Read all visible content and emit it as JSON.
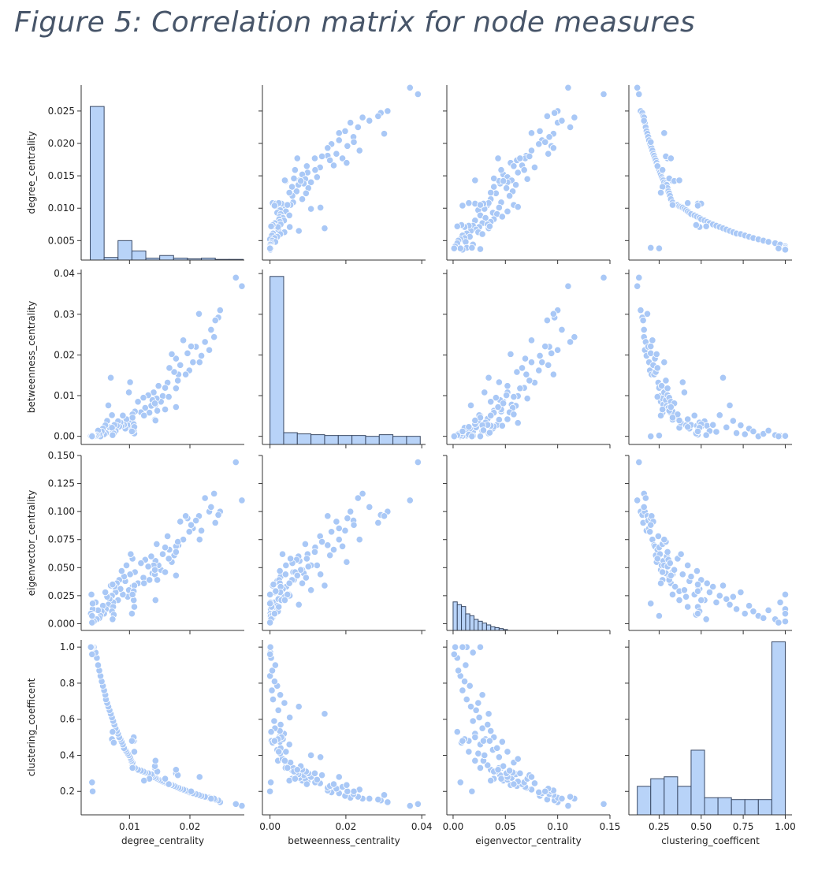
{
  "figure": {
    "title": "Figure 5: Correlation matrix for node measures"
  },
  "colors": {
    "point": "#a9c8f6",
    "point_edge": "#ffffff",
    "bar": "#b8d3f8",
    "bar_edge": "#3a4a66",
    "axis": "#333333"
  },
  "chart_data": {
    "type": "scatter",
    "title": "",
    "variables": [
      "degree_centrality",
      "betweenness_centrality",
      "eigenvector_centrality",
      "clustering_coefficent"
    ],
    "axes": [
      {
        "name": "degree_centrality",
        "range": [
          0.002,
          0.029
        ],
        "ticks": [
          0.005,
          0.01,
          0.015,
          0.02,
          0.025
        ],
        "tick_labels": [
          "0.005",
          "0.010",
          "0.015",
          "0.020",
          "0.025"
        ],
        "x_ticks": [
          0.01,
          0.02
        ],
        "x_tick_labels": [
          "0.01",
          "0.02"
        ]
      },
      {
        "name": "betweenness_centrality",
        "range": [
          -0.002,
          0.041
        ],
        "ticks": [
          0,
          0.01,
          0.02,
          0.03,
          0.04
        ],
        "tick_labels": [
          "0.00",
          "0.01",
          "0.02",
          "0.03",
          "0.04"
        ],
        "x_ticks": [
          0,
          0.02,
          0.04
        ],
        "x_tick_labels": [
          "0.00",
          "0.02",
          "0.04"
        ]
      },
      {
        "name": "eigenvector_centrality",
        "range": [
          -0.006,
          0.15
        ],
        "ticks": [
          0,
          0.025,
          0.05,
          0.075,
          0.1,
          0.125,
          0.15
        ],
        "tick_labels": [
          "0.000",
          "0.025",
          "0.050",
          "0.075",
          "0.100",
          "0.125",
          "0.150"
        ],
        "x_ticks": [
          0,
          0.05,
          0.1,
          0.15
        ],
        "x_tick_labels": [
          "0.00",
          "0.05",
          "0.10",
          "0.15"
        ]
      },
      {
        "name": "clustering_coefficent",
        "range": [
          0.07,
          1.04
        ],
        "ticks": [
          0.2,
          0.4,
          0.6,
          0.8,
          1.0
        ],
        "tick_labels": [
          "0.2",
          "0.4",
          "0.6",
          "0.8",
          "1.0"
        ],
        "x_ticks": [
          0.25,
          0.5,
          0.75,
          1.0
        ],
        "x_tick_labels": [
          "0.25",
          "0.50",
          "0.75",
          "1.00"
        ]
      }
    ],
    "grid": false,
    "legend": "none",
    "histograms": [
      {
        "variable": "degree_centrality",
        "bins": [
          {
            "x0": 0.0035,
            "x1": 0.0058,
            "v": 0.0257
          },
          {
            "x0": 0.0058,
            "x1": 0.0081,
            "v": 0.0024
          },
          {
            "x0": 0.0081,
            "x1": 0.0104,
            "v": 0.005
          },
          {
            "x0": 0.0104,
            "x1": 0.0127,
            "v": 0.0034
          },
          {
            "x0": 0.0127,
            "x1": 0.015,
            "v": 0.0023
          },
          {
            "x0": 0.015,
            "x1": 0.0173,
            "v": 0.0027
          },
          {
            "x0": 0.0173,
            "x1": 0.0196,
            "v": 0.0023
          },
          {
            "x0": 0.0196,
            "x1": 0.0219,
            "v": 0.0022
          },
          {
            "x0": 0.0219,
            "x1": 0.0242,
            "v": 0.0023
          },
          {
            "x0": 0.0242,
            "x1": 0.0265,
            "v": 0.0021
          },
          {
            "x0": 0.0265,
            "x1": 0.0288,
            "v": 0.0021
          }
        ]
      },
      {
        "variable": "betweenness_centrality",
        "bins": [
          {
            "x0": 0.0,
            "x1": 0.0036,
            "v": 0.0393
          },
          {
            "x0": 0.0036,
            "x1": 0.0072,
            "v": 0.0009
          },
          {
            "x0": 0.0072,
            "x1": 0.0108,
            "v": 0.0006
          },
          {
            "x0": 0.0108,
            "x1": 0.0144,
            "v": 0.0004
          },
          {
            "x0": 0.0144,
            "x1": 0.018,
            "v": 0.0002
          },
          {
            "x0": 0.018,
            "x1": 0.0216,
            "v": 0.0002
          },
          {
            "x0": 0.0216,
            "x1": 0.0252,
            "v": 0.0002
          },
          {
            "x0": 0.0252,
            "x1": 0.0288,
            "v": 0.0
          },
          {
            "x0": 0.0288,
            "x1": 0.0324,
            "v": 0.0004
          },
          {
            "x0": 0.0324,
            "x1": 0.036,
            "v": 0.0
          },
          {
            "x0": 0.036,
            "x1": 0.0396,
            "v": 0.0
          }
        ]
      },
      {
        "variable": "eigenvector_centrality",
        "bins": [
          {
            "x0": 0.0,
            "x1": 0.004,
            "v": 0.031
          },
          {
            "x0": 0.004,
            "x1": 0.008,
            "v": 0.028
          },
          {
            "x0": 0.008,
            "x1": 0.012,
            "v": 0.026
          },
          {
            "x0": 0.012,
            "x1": 0.016,
            "v": 0.018
          },
          {
            "x0": 0.016,
            "x1": 0.02,
            "v": 0.016
          },
          {
            "x0": 0.02,
            "x1": 0.024,
            "v": 0.012
          },
          {
            "x0": 0.024,
            "x1": 0.028,
            "v": 0.01
          },
          {
            "x0": 0.028,
            "x1": 0.032,
            "v": 0.008
          },
          {
            "x0": 0.032,
            "x1": 0.036,
            "v": 0.006
          },
          {
            "x0": 0.036,
            "x1": 0.04,
            "v": 0.004
          },
          {
            "x0": 0.04,
            "x1": 0.044,
            "v": 0.003
          },
          {
            "x0": 0.044,
            "x1": 0.048,
            "v": 0.002
          },
          {
            "x0": 0.048,
            "x1": 0.052,
            "v": 0.001
          }
        ]
      },
      {
        "variable": "clustering_coefficent",
        "bins": [
          {
            "x0": 0.12,
            "x1": 0.2,
            "v": 0.15
          },
          {
            "x0": 0.2,
            "x1": 0.28,
            "v": 0.19
          },
          {
            "x0": 0.28,
            "x1": 0.36,
            "v": 0.2
          },
          {
            "x0": 0.36,
            "x1": 0.44,
            "v": 0.15
          },
          {
            "x0": 0.44,
            "x1": 0.52,
            "v": 0.34
          },
          {
            "x0": 0.52,
            "x1": 0.6,
            "v": 0.09
          },
          {
            "x0": 0.6,
            "x1": 0.68,
            "v": 0.09
          },
          {
            "x0": 0.68,
            "x1": 0.76,
            "v": 0.08
          },
          {
            "x0": 0.76,
            "x1": 0.84,
            "v": 0.08
          },
          {
            "x0": 0.84,
            "x1": 0.92,
            "v": 0.08
          },
          {
            "x0": 0.92,
            "x1": 1.0,
            "v": 0.91
          }
        ]
      }
    ],
    "points": [
      [
        0.0286,
        0.0369,
        0.11,
        0.12
      ],
      [
        0.0276,
        0.039,
        0.144,
        0.13
      ],
      [
        0.025,
        0.031,
        0.1,
        0.14
      ],
      [
        0.0247,
        0.0292,
        0.097,
        0.15
      ],
      [
        0.0242,
        0.0285,
        0.09,
        0.155
      ],
      [
        0.024,
        0.0244,
        0.116,
        0.16
      ],
      [
        0.0232,
        0.0212,
        0.1,
        0.165
      ],
      [
        0.0225,
        0.0232,
        0.112,
        0.17
      ],
      [
        0.0219,
        0.0198,
        0.083,
        0.175
      ],
      [
        0.0215,
        0.0301,
        0.096,
        0.18
      ],
      [
        0.021,
        0.022,
        0.092,
        0.185
      ],
      [
        0.0205,
        0.0182,
        0.085,
        0.19
      ],
      [
        0.0199,
        0.0162,
        0.082,
        0.195
      ],
      [
        0.0196,
        0.0204,
        0.094,
        0.2
      ],
      [
        0.0193,
        0.0152,
        0.096,
        0.205
      ],
      [
        0.0189,
        0.0236,
        0.075,
        0.21
      ],
      [
        0.0184,
        0.0175,
        0.091,
        0.215
      ],
      [
        0.0181,
        0.0152,
        0.07,
        0.22
      ],
      [
        0.0177,
        0.0191,
        0.069,
        0.225
      ],
      [
        0.0174,
        0.0158,
        0.061,
        0.23
      ],
      [
        0.017,
        0.0202,
        0.055,
        0.235
      ],
      [
        0.0166,
        0.0168,
        0.066,
        0.24
      ],
      [
        0.0163,
        0.0132,
        0.078,
        0.245
      ],
      [
        0.0159,
        0.0119,
        0.068,
        0.25
      ],
      [
        0.0155,
        0.0099,
        0.062,
        0.255
      ],
      [
        0.0152,
        0.0085,
        0.048,
        0.26
      ],
      [
        0.0148,
        0.0124,
        0.052,
        0.265
      ],
      [
        0.0145,
        0.0093,
        0.071,
        0.27
      ],
      [
        0.0143,
        0.0078,
        0.056,
        0.275
      ],
      [
        0.014,
        0.0108,
        0.052,
        0.28
      ],
      [
        0.0138,
        0.0089,
        0.045,
        0.29
      ],
      [
        0.0136,
        0.0075,
        0.06,
        0.295
      ],
      [
        0.0131,
        0.0101,
        0.051,
        0.3
      ],
      [
        0.0126,
        0.007,
        0.057,
        0.305
      ],
      [
        0.0123,
        0.0095,
        0.041,
        0.31
      ],
      [
        0.0119,
        0.0059,
        0.054,
        0.315
      ],
      [
        0.0114,
        0.0085,
        0.036,
        0.32
      ],
      [
        0.0109,
        0.0061,
        0.046,
        0.33
      ],
      [
        0.0105,
        0.0043,
        0.033,
        0.345
      ],
      [
        0.0105,
        0.0054,
        0.058,
        0.36
      ],
      [
        0.0103,
        0.0021,
        0.029,
        0.37
      ],
      [
        0.0102,
        0.0033,
        0.062,
        0.38
      ],
      [
        0.0101,
        0.0133,
        0.044,
        0.39
      ],
      [
        0.0099,
        0.0108,
        0.03,
        0.4
      ],
      [
        0.0097,
        0.0027,
        0.024,
        0.41
      ],
      [
        0.0095,
        0.0042,
        0.052,
        0.42
      ],
      [
        0.0093,
        0.0019,
        0.038,
        0.43
      ],
      [
        0.0091,
        0.0028,
        0.042,
        0.44
      ],
      [
        0.0089,
        0.0051,
        0.026,
        0.46
      ],
      [
        0.0087,
        0.0026,
        0.047,
        0.475
      ],
      [
        0.0085,
        0.0034,
        0.031,
        0.49
      ],
      [
        0.0083,
        0.0024,
        0.039,
        0.5
      ],
      [
        0.0081,
        0.0037,
        0.021,
        0.52
      ],
      [
        0.0079,
        0.0026,
        0.036,
        0.535
      ],
      [
        0.0077,
        0.0013,
        0.028,
        0.55
      ],
      [
        0.0075,
        0.0028,
        0.033,
        0.57
      ],
      [
        0.0073,
        0.0011,
        0.019,
        0.59
      ],
      [
        0.0071,
        0.0052,
        0.025,
        0.61
      ],
      [
        0.0069,
        0.0144,
        0.034,
        0.63
      ],
      [
        0.0067,
        0.0022,
        0.022,
        0.65
      ],
      [
        0.0065,
        0.0076,
        0.017,
        0.67
      ],
      [
        0.0063,
        0.0038,
        0.024,
        0.69
      ],
      [
        0.0061,
        0.0008,
        0.013,
        0.71
      ],
      [
        0.006,
        0.0027,
        0.028,
        0.735
      ],
      [
        0.0058,
        0.0005,
        0.009,
        0.76
      ],
      [
        0.0056,
        0.0019,
        0.016,
        0.785
      ],
      [
        0.0054,
        0.0012,
        0.011,
        0.81
      ],
      [
        0.0052,
        0.0,
        0.007,
        0.84
      ],
      [
        0.005,
        0.0006,
        0.005,
        0.87
      ],
      [
        0.0048,
        0.0014,
        0.012,
        0.9
      ],
      [
        0.0046,
        0.0003,
        0.004,
        0.94
      ],
      [
        0.0044,
        0.0001,
        0.019,
        0.97
      ],
      [
        0.0041,
        0.0,
        0.002,
        1.0
      ],
      [
        0.0039,
        0.0002,
        0.013,
        1.0
      ],
      [
        0.0037,
        0.0,
        0.026,
        1.0
      ],
      [
        0.0036,
        0.0001,
        0.009,
        1.0
      ],
      [
        0.0108,
        0.0007,
        0.034,
        0.48
      ],
      [
        0.0107,
        0.0015,
        0.029,
        0.48
      ],
      [
        0.0072,
        0.0009,
        0.035,
        0.48
      ],
      [
        0.0073,
        0.0004,
        0.015,
        0.48
      ],
      [
        0.0142,
        0.0041,
        0.044,
        0.33
      ],
      [
        0.0146,
        0.0063,
        0.039,
        0.31
      ],
      [
        0.0177,
        0.0118,
        0.064,
        0.3
      ],
      [
        0.018,
        0.0137,
        0.073,
        0.29
      ],
      [
        0.0107,
        0.003,
        0.021,
        0.5
      ],
      [
        0.0071,
        0.0021,
        0.011,
        0.49
      ],
      [
        0.0039,
        0.0,
        0.018,
        0.2
      ],
      [
        0.0038,
        0.0002,
        0.007,
        0.25
      ],
      [
        0.0105,
        0.0046,
        0.026,
        0.33
      ],
      [
        0.0142,
        0.0081,
        0.048,
        0.34
      ],
      [
        0.0216,
        0.0182,
        0.075,
        0.28
      ],
      [
        0.0202,
        0.0221,
        0.088,
        0.2
      ],
      [
        0.0133,
        0.0058,
        0.039,
        0.27
      ],
      [
        0.0124,
        0.0051,
        0.036,
        0.26
      ],
      [
        0.0165,
        0.0097,
        0.058,
        0.24
      ],
      [
        0.0159,
        0.0066,
        0.046,
        0.27
      ],
      [
        0.0074,
        0.0007,
        0.008,
        0.47
      ],
      [
        0.0108,
        0.0023,
        0.015,
        0.42
      ],
      [
        0.0143,
        0.0039,
        0.021,
        0.37
      ],
      [
        0.0177,
        0.0072,
        0.043,
        0.32
      ],
      [
        0.0235,
        0.0262,
        0.104,
        0.16
      ],
      [
        0.0104,
        0.0012,
        0.009,
        0.48
      ],
      [
        0.0072,
        0.0003,
        0.004,
        0.53
      ],
      [
        0.0038,
        0.0,
        0.001,
        0.96
      ]
    ]
  }
}
